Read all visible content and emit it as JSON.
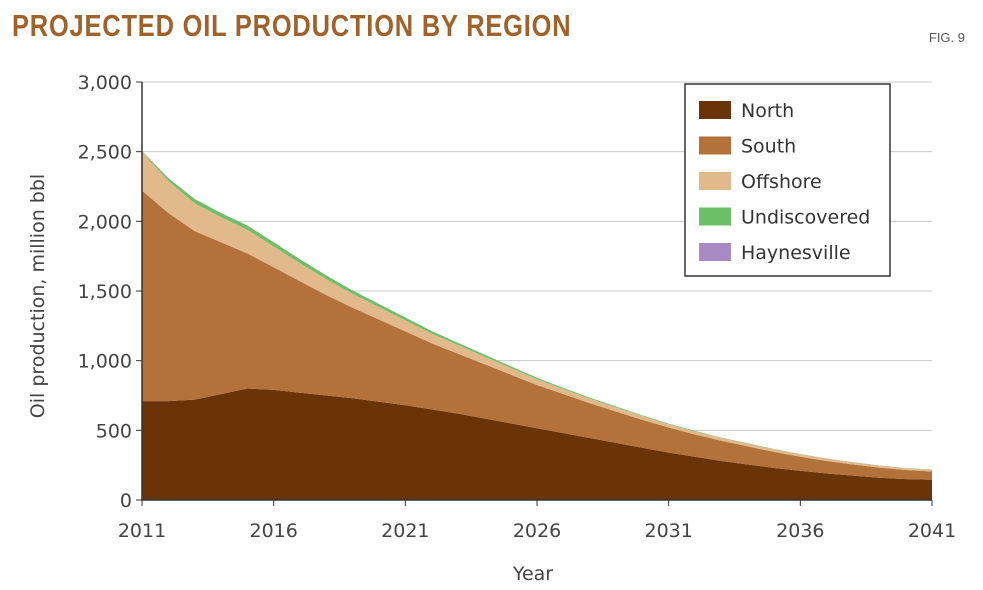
{
  "header": {
    "title": "PROJECTED OIL PRODUCTION BY REGION",
    "fig": "FIG. 9"
  },
  "colors": {
    "title": "#a0622b",
    "north": "#6b3308",
    "south": "#b2723a",
    "offshore": "#e2b98a",
    "undiscovered": "#6dbf67",
    "haynesville": "#a88bc4"
  },
  "chart_data": {
    "type": "area",
    "stacked": true,
    "title": "PROJECTED OIL PRODUCTION BY REGION",
    "xlabel": "Year",
    "ylabel": "Oil production, million bbl",
    "xlim": [
      2011,
      2041
    ],
    "ylim": [
      0,
      3000
    ],
    "xticks": [
      "2011",
      "2016",
      "2021",
      "2026",
      "2031",
      "2036",
      "2041"
    ],
    "yticks": [
      "0",
      "500",
      "1,000",
      "1,500",
      "2,000",
      "2,500",
      "3,000"
    ],
    "grid": true,
    "legend_position": "top-right",
    "x": [
      2011,
      2012,
      2013,
      2014,
      2015,
      2016,
      2017,
      2018,
      2019,
      2020,
      2021,
      2022,
      2023,
      2024,
      2025,
      2026,
      2027,
      2028,
      2029,
      2030,
      2031,
      2032,
      2033,
      2034,
      2035,
      2036,
      2037,
      2038,
      2039,
      2040,
      2041
    ],
    "series": [
      {
        "name": "North",
        "color": "#6b3308",
        "values": [
          710,
          710,
          720,
          760,
          800,
          790,
          770,
          750,
          730,
          705,
          680,
          650,
          620,
          585,
          550,
          515,
          480,
          445,
          410,
          375,
          340,
          310,
          280,
          255,
          230,
          210,
          190,
          175,
          160,
          150,
          145
        ]
      },
      {
        "name": "South",
        "color": "#b2723a",
        "values": [
          1510,
          1350,
          1210,
          1090,
          970,
          880,
          800,
          720,
          650,
          590,
          530,
          475,
          430,
          390,
          350,
          310,
          280,
          250,
          225,
          200,
          180,
          160,
          145,
          130,
          115,
          100,
          90,
          80,
          72,
          65,
          60
        ]
      },
      {
        "name": "Offshore",
        "color": "#e2b98a",
        "values": [
          280,
          230,
          200,
          180,
          170,
          150,
          130,
          115,
          100,
          90,
          80,
          70,
          62,
          55,
          48,
          42,
          37,
          33,
          30,
          27,
          24,
          22,
          20,
          19,
          18,
          17,
          16,
          15,
          14,
          13,
          12
        ]
      },
      {
        "name": "Undiscovered",
        "color": "#6dbf67",
        "values": [
          5,
          20,
          30,
          30,
          30,
          30,
          28,
          26,
          24,
          22,
          20,
          18,
          16,
          14,
          12,
          10,
          8,
          7,
          6,
          5,
          4,
          4,
          3,
          3,
          3,
          2,
          2,
          2,
          2,
          2,
          2
        ]
      },
      {
        "name": "Haynesville",
        "color": "#a88bc4",
        "values": [
          0,
          0,
          0,
          0,
          0,
          0,
          0,
          0,
          0,
          0,
          0,
          0,
          0,
          0,
          0,
          0,
          0,
          0,
          0,
          0,
          0,
          0,
          0,
          0,
          0,
          0,
          0,
          0,
          0,
          0,
          0
        ]
      }
    ]
  }
}
